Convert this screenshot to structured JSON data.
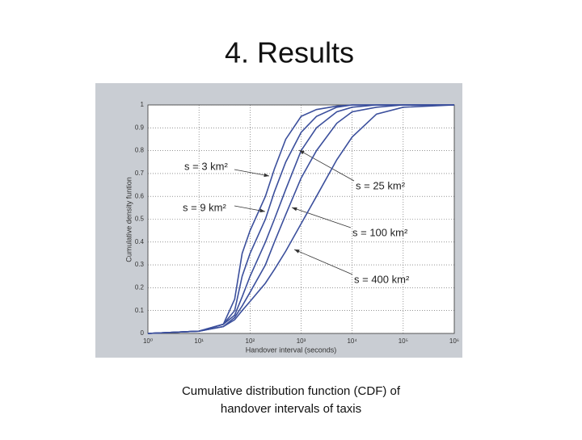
{
  "slide_title": "4. Results",
  "caption": [
    "Cumulative distribution function (CDF) of",
    "handover intervals of taxis"
  ],
  "chart_data": {
    "type": "line",
    "x_label": "Handover interval (seconds)",
    "y_label": "Cumulative density funtion",
    "xscale": "log",
    "grid": true,
    "x": [
      1,
      10,
      30,
      50,
      70,
      100,
      200,
      300,
      500,
      1000,
      2000,
      5000,
      10000,
      30000,
      100000,
      1000000
    ],
    "series": [
      {
        "name": "s = 3 km²",
        "color": "#3b4f9c",
        "values": [
          0,
          0.01,
          0.04,
          0.15,
          0.35,
          0.45,
          0.6,
          0.72,
          0.85,
          0.95,
          0.98,
          0.995,
          1,
          1,
          1,
          1
        ]
      },
      {
        "name": "s = 9 km²",
        "color": "#3b4f9c",
        "values": [
          0,
          0.01,
          0.04,
          0.1,
          0.25,
          0.35,
          0.5,
          0.62,
          0.75,
          0.88,
          0.95,
          0.99,
          1,
          1,
          1,
          1
        ]
      },
      {
        "name": "s = 25 km²",
        "color": "#3b4f9c",
        "values": [
          0,
          0.01,
          0.04,
          0.08,
          0.16,
          0.25,
          0.4,
          0.5,
          0.63,
          0.8,
          0.9,
          0.97,
          0.99,
          1,
          1,
          1
        ]
      },
      {
        "name": "s = 100 km²",
        "color": "#3b4f9c",
        "values": [
          0,
          0.01,
          0.03,
          0.07,
          0.12,
          0.18,
          0.3,
          0.4,
          0.52,
          0.68,
          0.8,
          0.92,
          0.97,
          0.99,
          1,
          1
        ]
      },
      {
        "name": "s = 400 km²",
        "color": "#3b4f9c",
        "values": [
          0,
          0.01,
          0.03,
          0.06,
          0.1,
          0.14,
          0.22,
          0.28,
          0.36,
          0.48,
          0.6,
          0.76,
          0.86,
          0.96,
          0.99,
          1
        ]
      }
    ],
    "xlim": [
      1,
      1000000
    ],
    "xticks": [
      {
        "value": 1,
        "label": "10⁰"
      },
      {
        "value": 10,
        "label": "10¹"
      },
      {
        "value": 100,
        "label": "10²"
      },
      {
        "value": 1000,
        "label": "10³"
      },
      {
        "value": 10000,
        "label": "10⁴"
      },
      {
        "value": 100000,
        "label": "10⁵"
      },
      {
        "value": 1000000,
        "label": "10⁶"
      }
    ],
    "ylim": [
      0,
      1
    ],
    "yticks": [
      0,
      0.1,
      0.2,
      0.3,
      0.4,
      0.5,
      0.6,
      0.7,
      0.8,
      0.9,
      1
    ]
  }
}
